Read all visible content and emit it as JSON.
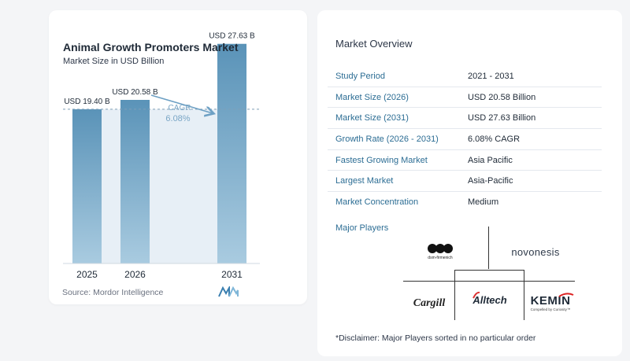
{
  "chart": {
    "title": "Animal Growth Promoters Market",
    "subtitle": "Market Size in USD Billion",
    "source": "Source: Mordor Intelligence",
    "cagr_label": "CAGR",
    "cagr_value": "6.08%"
  },
  "chart_data": {
    "type": "bar",
    "categories": [
      "2025",
      "2026",
      "2031"
    ],
    "values": [
      19.4,
      20.58,
      27.63
    ],
    "data_labels": [
      "USD 19.40 B",
      "USD 20.58 B",
      "USD 27.63 B"
    ],
    "title": "Animal Growth Promoters Market",
    "subtitle": "Market Size in USD Billion",
    "ylim": [
      0,
      28
    ],
    "grid": false,
    "annotation": "CAGR 6.08%"
  },
  "overview": {
    "title": "Market Overview",
    "rows": [
      {
        "label": "Study Period",
        "value": "2021 - 2031"
      },
      {
        "label": "Market Size (2026)",
        "value": "USD 20.58 Billion"
      },
      {
        "label": "Market Size (2031)",
        "value": "USD 27.63 Billion"
      },
      {
        "label": "Growth Rate (2026 - 2031)",
        "value": "6.08% CAGR"
      },
      {
        "label": "Fastest Growing Market",
        "value": "Asia Pacific"
      },
      {
        "label": "Largest Market",
        "value": "Asia-Pacific"
      },
      {
        "label": "Market Concentration",
        "value": "Medium"
      }
    ]
  },
  "players": {
    "title": "Major Players",
    "logos": [
      "dsm-firmenich",
      "novonesis",
      "Cargill",
      "Alltech",
      "KEMIN"
    ],
    "kemin_tagline": "Compelled by Curiosity™"
  },
  "disclaimer": "*Disclaimer: Major Players sorted in no particular order",
  "colors": {
    "bar_top": "#5a93b8",
    "bar_bottom": "#a9cbe0",
    "label_blue": "#2c6d94",
    "cagr_text": "#7aa6c6",
    "shade": "#dfeaf3"
  }
}
